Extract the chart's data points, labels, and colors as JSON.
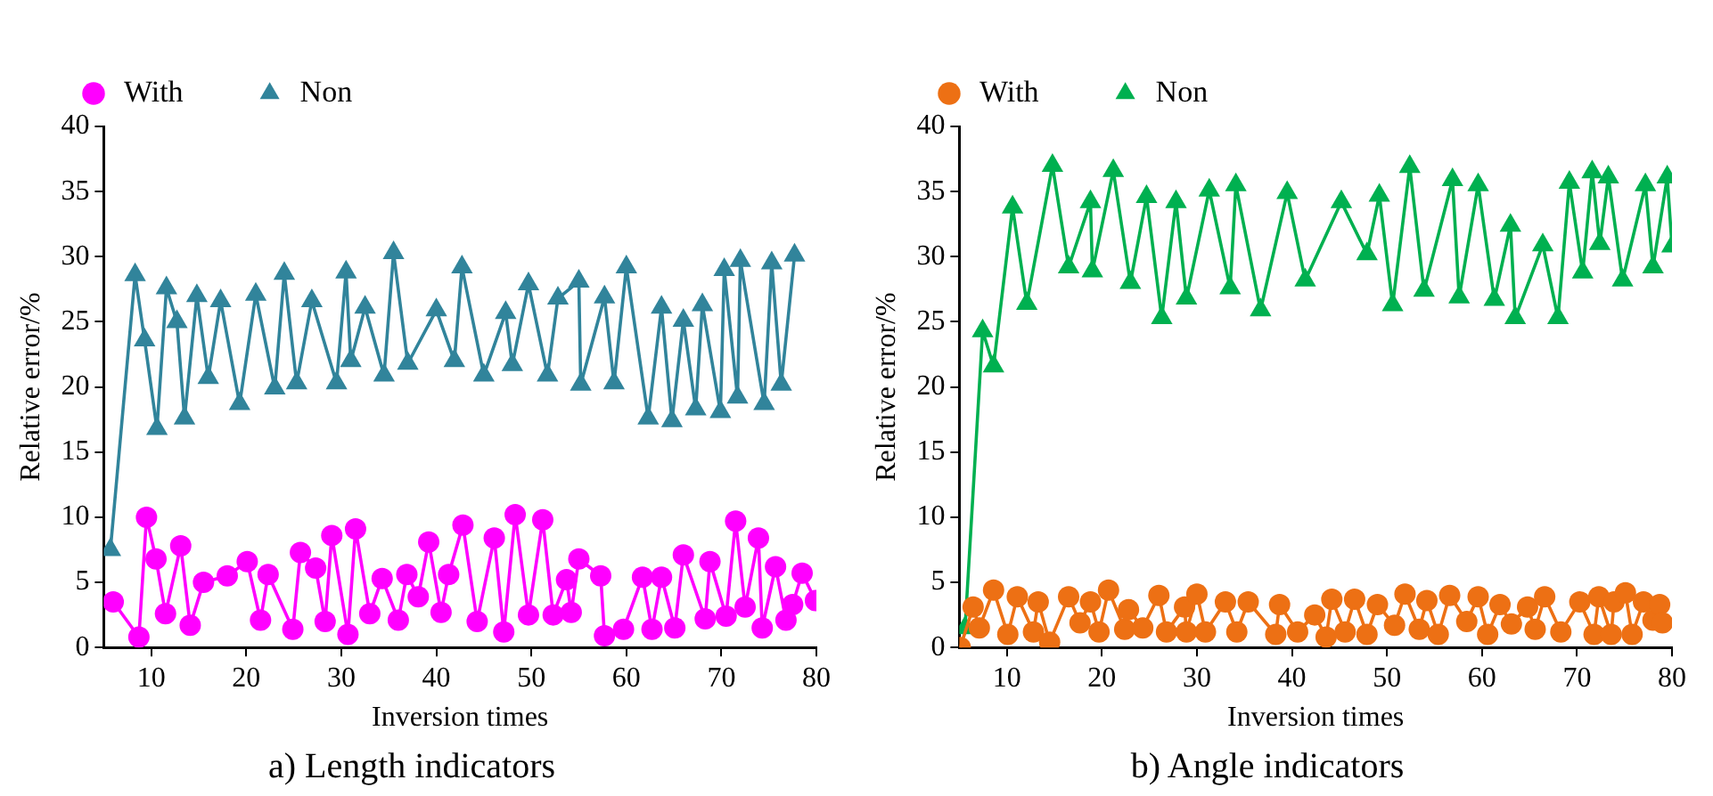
{
  "chart_data": [
    {
      "type": "line",
      "title": "a) Length indicators",
      "xlabel": "Inversion times",
      "ylabel": "Relative error/%",
      "legend": "top left",
      "grid": false,
      "xlim": [
        5,
        80
      ],
      "xticks": [
        10,
        20,
        30,
        40,
        50,
        60,
        70,
        80
      ],
      "ylim": [
        0,
        40
      ],
      "yticks": [
        0,
        5,
        10,
        15,
        20,
        25,
        30,
        35,
        40
      ],
      "series": [
        {
          "name": "With",
          "color": "#ff00ff",
          "marker": "circle",
          "x": [
            6,
            8.7,
            9.5,
            10.5,
            11.5,
            13.1,
            14.1,
            15.5,
            18,
            20.1,
            21.5,
            22.3,
            24.9,
            25.7,
            27.3,
            28.3,
            29,
            30.7,
            31.5,
            33,
            34.3,
            36,
            36.9,
            38.1,
            39.2,
            40.5,
            41.3,
            42.8,
            44.3,
            46.1,
            47.1,
            48.3,
            49.7,
            51.2,
            52.3,
            53.7,
            54.2,
            55,
            57.3,
            57.7,
            59.7,
            61.7,
            62.7,
            63.7,
            65.1,
            66,
            68.3,
            68.8,
            70.5,
            71.5,
            72.5,
            73.9,
            74.3,
            75.7,
            76.8,
            77.5,
            78.5,
            79.9
          ],
          "values": [
            3.5,
            0.8,
            10,
            6.8,
            2.6,
            7.8,
            1.7,
            5,
            5.5,
            6.6,
            2.1,
            5.6,
            1.4,
            7.3,
            6.1,
            2,
            8.6,
            1,
            9.1,
            2.6,
            5.3,
            2.1,
            5.6,
            3.9,
            8.1,
            2.7,
            5.6,
            9.4,
            2,
            8.4,
            1.2,
            10.2,
            2.5,
            9.8,
            2.5,
            5.2,
            2.7,
            6.8,
            5.5,
            0.9,
            1.4,
            5.4,
            1.4,
            5.4,
            1.5,
            7.1,
            2.2,
            6.6,
            2.4,
            9.7,
            3.1,
            8.4,
            1.5,
            6.2,
            2.1,
            3.3,
            5.7,
            3.6
          ]
        },
        {
          "name": "Non",
          "color": "#31849b",
          "marker": "triangle",
          "x": [
            5.7,
            8.3,
            9.3,
            10.6,
            11.6,
            12.7,
            13.5,
            14.8,
            16,
            17.3,
            19.3,
            21,
            23,
            24,
            25.3,
            26.9,
            29.5,
            30.5,
            31,
            32.5,
            34.5,
            35.5,
            37,
            40,
            41.9,
            42.7,
            45,
            47.3,
            48,
            49.7,
            51.7,
            52.8,
            55,
            55.2,
            57.7,
            58.7,
            60,
            62.3,
            63.7,
            64.8,
            66,
            67.3,
            68,
            69.9,
            70.3,
            71.7,
            72,
            74.5,
            75.3,
            76.3,
            77.7
          ],
          "values": [
            7.5,
            28.6,
            23.6,
            16.8,
            27.6,
            25,
            17.6,
            27,
            20.7,
            26.6,
            18.7,
            27.1,
            19.9,
            28.7,
            20.3,
            26.6,
            20.3,
            28.8,
            22,
            26.1,
            20.9,
            30.3,
            21.8,
            25.9,
            22,
            29.2,
            20.9,
            25.7,
            21.7,
            27.9,
            20.9,
            26.8,
            28.1,
            20.2,
            26.9,
            20.3,
            29.2,
            17.6,
            26.1,
            17.4,
            25.1,
            18.3,
            26.3,
            18.1,
            29,
            19.2,
            29.7,
            18.7,
            29.5,
            20.2,
            30.1
          ]
        }
      ]
    },
    {
      "type": "line",
      "title": "b) Angle indicators",
      "xlabel": "Inversion times",
      "ylabel": "Relative error/%",
      "legend": "top left",
      "grid": false,
      "xlim": [
        5,
        80
      ],
      "xticks": [
        10,
        20,
        30,
        40,
        50,
        60,
        70,
        80
      ],
      "ylim": [
        0,
        40
      ],
      "yticks": [
        0,
        5,
        10,
        15,
        20,
        25,
        30,
        35,
        40
      ],
      "series": [
        {
          "name": "With",
          "color": "#ed7014",
          "marker": "circle",
          "x": [
            5.1,
            6.45,
            7.1,
            8.6,
            10.1,
            11.1,
            12.8,
            13.3,
            14.5,
            16.5,
            17.7,
            18.8,
            19.7,
            20.7,
            22.4,
            22.8,
            24.3,
            26,
            26.8,
            28.7,
            28.9,
            30,
            30.9,
            33,
            34.2,
            35.4,
            38.3,
            38.7,
            40.6,
            42.4,
            43.6,
            44.2,
            45.6,
            46.6,
            47.9,
            49,
            50.8,
            51.9,
            53.4,
            54.2,
            55.4,
            56.6,
            58.4,
            59.6,
            60.6,
            61.9,
            63.1,
            64.8,
            65.6,
            66.6,
            68.3,
            70.3,
            71.8,
            72.3,
            73.6,
            73.9,
            75.1,
            75.8,
            77,
            78,
            78.7,
            79
          ],
          "values": [
            0,
            3.1,
            1.5,
            4.4,
            1,
            3.9,
            1.2,
            3.5,
            0.4,
            3.9,
            1.9,
            3.5,
            1.2,
            4.4,
            1.4,
            2.9,
            1.5,
            4,
            1.2,
            3.1,
            1.2,
            4.1,
            1.2,
            3.5,
            1.2,
            3.5,
            1,
            3.3,
            1.2,
            2.5,
            0.8,
            3.7,
            1.2,
            3.7,
            1,
            3.3,
            1.7,
            4.1,
            1.4,
            3.6,
            1,
            4,
            2,
            3.9,
            1,
            3.3,
            1.8,
            3.1,
            1.4,
            3.9,
            1.2,
            3.5,
            1,
            3.9,
            1,
            3.5,
            4.2,
            1,
            3.5,
            2.1,
            3.3,
            1.9
          ]
        },
        {
          "name": "Non",
          "color": "#00b050",
          "marker": "triangle",
          "x": [
            5.6,
            7.45,
            8.6,
            10.6,
            12.1,
            14.8,
            16.5,
            18.8,
            19,
            21.2,
            23,
            24.7,
            26.3,
            27.8,
            28.9,
            31.3,
            33.5,
            34.1,
            36.7,
            39.5,
            41.4,
            45.2,
            47.9,
            49.2,
            50.6,
            52.4,
            53.9,
            56.9,
            57.6,
            59.6,
            61.3,
            63,
            63.5,
            66.4,
            68,
            69.2,
            70.6,
            71.6,
            72.4,
            73.3,
            74.8,
            77.2,
            78,
            79.5,
            80
          ],
          "values": [
            1.5,
            24.3,
            21.6,
            33.8,
            26.4,
            37,
            29.2,
            34.2,
            28.9,
            36.6,
            28,
            34.6,
            25.3,
            34.2,
            26.8,
            35.1,
            27.6,
            35.5,
            25.9,
            34.9,
            28.2,
            34.2,
            30.2,
            34.7,
            26.3,
            36.9,
            27.4,
            35.9,
            26.9,
            35.5,
            26.7,
            32.4,
            25.3,
            30.9,
            25.3,
            35.7,
            28.8,
            36.5,
            31,
            36.1,
            28.2,
            35.5,
            29.2,
            36.1,
            30.8
          ]
        }
      ]
    }
  ]
}
